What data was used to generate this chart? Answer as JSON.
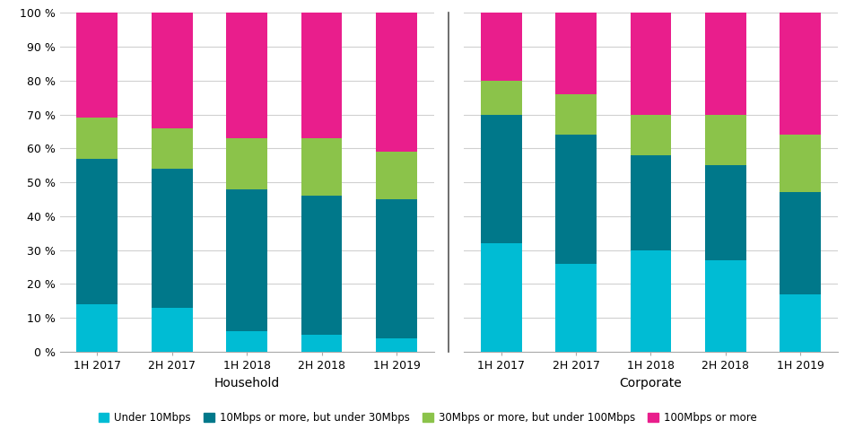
{
  "household": {
    "categories": [
      "1H 2017",
      "2H 2017",
      "1H 2018",
      "2H 2018",
      "1H 2019"
    ],
    "under10": [
      14,
      13,
      6,
      5,
      4
    ],
    "10to30": [
      43,
      41,
      42,
      41,
      41
    ],
    "30to100": [
      12,
      12,
      15,
      17,
      14
    ],
    "100plus": [
      31,
      34,
      37,
      37,
      41
    ]
  },
  "corporate": {
    "categories": [
      "1H 2017",
      "2H 2017",
      "1H 2018",
      "2H 2018",
      "1H 2019"
    ],
    "under10": [
      32,
      26,
      30,
      27,
      17
    ],
    "10to30": [
      38,
      38,
      28,
      28,
      30
    ],
    "30to100": [
      10,
      12,
      12,
      15,
      17
    ],
    "100plus": [
      20,
      24,
      30,
      30,
      36
    ]
  },
  "colors": {
    "under10": "#00bcd4",
    "10to30": "#00788a",
    "30to100": "#8bc34a",
    "100plus": "#e91e8c"
  },
  "legend_labels": [
    "Under 10Mbps",
    "10Mbps or more, but under 30Mbps",
    "30Mbps or more, but under 100Mbps",
    "100Mbps or more"
  ],
  "yticks": [
    0,
    10,
    20,
    30,
    40,
    50,
    60,
    70,
    80,
    90,
    100
  ],
  "group_label_household": "Household",
  "group_label_corporate": "Corporate",
  "background_color": "#ffffff",
  "grid_color": "#d0d0d0",
  "bar_width": 0.55,
  "separator_line_color": "#555555",
  "tick_label_fontsize": 9,
  "xlabel_fontsize": 10,
  "legend_fontsize": 8.5
}
